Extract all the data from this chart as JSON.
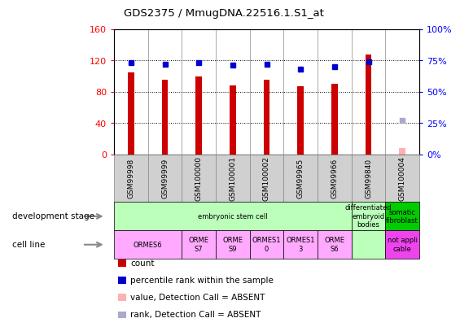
{
  "title": "GDS2375 / MmugDNA.22516.1.S1_at",
  "samples": [
    "GSM99998",
    "GSM99999",
    "GSM100000",
    "GSM100001",
    "GSM100002",
    "GSM99965",
    "GSM99966",
    "GSM99840",
    "GSM100004"
  ],
  "count_values": [
    105,
    95,
    100,
    88,
    95,
    87,
    90,
    128,
    8
  ],
  "percentile_values": [
    73,
    72,
    73,
    71,
    72,
    68,
    70,
    74,
    27
  ],
  "absent_count_idx": 8,
  "absent_rank_idx": 8,
  "count_color": "#cc0000",
  "percentile_color": "#0000cc",
  "absent_count_color": "#ffb0b0",
  "absent_rank_color": "#aaaacc",
  "ylim_left": [
    0,
    160
  ],
  "ylim_right": [
    0,
    100
  ],
  "yticks_left": [
    0,
    40,
    80,
    120,
    160
  ],
  "yticks_right": [
    0,
    25,
    50,
    75,
    100
  ],
  "yticklabels_right": [
    "0%",
    "25%",
    "50%",
    "75%",
    "100%"
  ],
  "dev_stage_configs": [
    [
      0,
      7,
      "embryonic stem cell",
      "#bbffbb"
    ],
    [
      7,
      8,
      "differentiated\nembryoid\nbodies",
      "#bbffbb"
    ],
    [
      8,
      9,
      "somatic\nfibroblast",
      "#00cc00"
    ]
  ],
  "cell_line_configs": [
    [
      0,
      2,
      "ORMES6",
      "#ffaaff"
    ],
    [
      2,
      3,
      "ORME\nS7",
      "#ffaaff"
    ],
    [
      3,
      4,
      "ORME\nS9",
      "#ffaaff"
    ],
    [
      4,
      5,
      "ORMES1\n0",
      "#ffaaff"
    ],
    [
      5,
      6,
      "ORMES1\n3",
      "#ffaaff"
    ],
    [
      6,
      7,
      "ORME\nS6",
      "#ffaaff"
    ],
    [
      7,
      8,
      "",
      "#bbffbb"
    ],
    [
      8,
      9,
      "not appli\ncable",
      "#ee44ee"
    ]
  ],
  "legend_items": [
    [
      "#cc0000",
      "count"
    ],
    [
      "#0000cc",
      "percentile rank within the sample"
    ],
    [
      "#ffb0b0",
      "value, Detection Call = ABSENT"
    ],
    [
      "#aaaacc",
      "rank, Detection Call = ABSENT"
    ]
  ],
  "background_color": "#ffffff"
}
